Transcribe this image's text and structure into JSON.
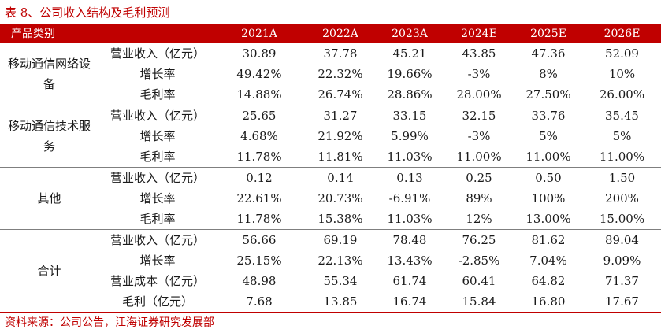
{
  "title": "表 8、公司收入结构及毛利预测",
  "header": {
    "category": "产品类别",
    "years": [
      "2021A",
      "2022A",
      "2023A",
      "2024E",
      "2025E",
      "2026E"
    ]
  },
  "groups": [
    {
      "label": "移动通信网络设备",
      "rows": [
        {
          "metric": "营业收入（亿元）",
          "values": [
            "30.89",
            "37.78",
            "45.21",
            "43.85",
            "47.36",
            "52.09"
          ]
        },
        {
          "metric": "增长率",
          "values": [
            "49.42%",
            "22.32%",
            "19.66%",
            "-3%",
            "8%",
            "10%"
          ]
        },
        {
          "metric": "毛利率",
          "values": [
            "14.88%",
            "26.74%",
            "28.86%",
            "28.00%",
            "27.50%",
            "26.00%"
          ]
        }
      ]
    },
    {
      "label": "移动通信技术服务",
      "rows": [
        {
          "metric": "营业收入（亿元）",
          "values": [
            "25.65",
            "31.27",
            "33.15",
            "32.15",
            "33.76",
            "35.45"
          ]
        },
        {
          "metric": "增长率",
          "values": [
            "4.68%",
            "21.92%",
            "5.99%",
            "-3%",
            "5%",
            "5%"
          ]
        },
        {
          "metric": "毛利率",
          "values": [
            "11.78%",
            "11.81%",
            "11.03%",
            "11.00%",
            "11.00%",
            "11.00%"
          ]
        }
      ]
    },
    {
      "label": "其他",
      "rows": [
        {
          "metric": "营业收入（亿元）",
          "values": [
            "0.12",
            "0.14",
            "0.13",
            "0.25",
            "0.50",
            "1.50"
          ]
        },
        {
          "metric": "增长率",
          "values": [
            "22.61%",
            "20.73%",
            "-6.91%",
            "89%",
            "100%",
            "200%"
          ]
        },
        {
          "metric": "毛利率",
          "values": [
            "11.78%",
            "15.38%",
            "11.03%",
            "12%",
            "13.00%",
            "15.00%"
          ]
        }
      ]
    },
    {
      "label": "合计",
      "rows": [
        {
          "metric": "营业收入（亿元）",
          "values": [
            "56.66",
            "69.19",
            "78.48",
            "76.25",
            "81.62",
            "89.04"
          ]
        },
        {
          "metric": "增长率",
          "values": [
            "25.15%",
            "22.13%",
            "13.43%",
            "-2.85%",
            "7.04%",
            "9.09%"
          ]
        },
        {
          "metric": "营业成本（亿元）",
          "values": [
            "48.98",
            "55.34",
            "61.74",
            "60.41",
            "64.82",
            "71.37"
          ]
        },
        {
          "metric": "毛利（亿元）",
          "values": [
            "7.68",
            "13.85",
            "16.74",
            "15.84",
            "16.80",
            "17.67"
          ]
        }
      ]
    }
  ],
  "source": "资料来源：公司公告，江海证券研究发展部"
}
